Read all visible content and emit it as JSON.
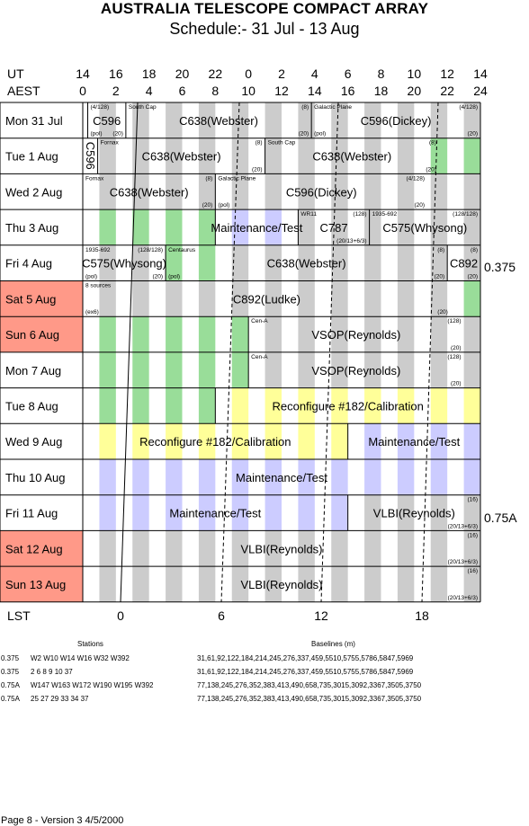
{
  "title": "AUSTRALIA TELESCOPE COMPACT ARRAY",
  "subtitle": "Schedule:- 31 Jul - 13 Aug",
  "axis": {
    "ut_label": "UT",
    "aest_label": "AEST",
    "lst_label": "LST",
    "ut_ticks": [
      "14",
      "16",
      "18",
      "20",
      "22",
      "0",
      "2",
      "4",
      "6",
      "8",
      "10",
      "12",
      "14"
    ],
    "aest_ticks": [
      "0",
      "2",
      "4",
      "6",
      "8",
      "10",
      "12",
      "14",
      "16",
      "18",
      "20",
      "22",
      "24"
    ],
    "lst_ticks": [
      "0",
      "6",
      "12",
      "18"
    ]
  },
  "days": [
    {
      "label": "Mon   31 Jul",
      "weekend": false
    },
    {
      "label": "Tue   1  Aug",
      "weekend": false
    },
    {
      "label": "Wed   2  Aug",
      "weekend": false
    },
    {
      "label": "Thu   3  Aug",
      "weekend": false
    },
    {
      "label": "Fri    4  Aug",
      "weekend": false
    },
    {
      "label": "Sat   5  Aug",
      "weekend": true
    },
    {
      "label": "Sun   6  Aug",
      "weekend": true
    },
    {
      "label": "Mon   7  Aug",
      "weekend": false
    },
    {
      "label": "Tue   8  Aug",
      "weekend": false
    },
    {
      "label": "Wed   9  Aug",
      "weekend": false
    },
    {
      "label": "Thu   10 Aug",
      "weekend": false
    },
    {
      "label": "Fri    11 Aug",
      "weekend": false
    },
    {
      "label": "Sat   12 Aug",
      "weekend": true
    },
    {
      "label": "Sun   13 Aug",
      "weekend": true
    }
  ],
  "configs": [
    {
      "label": "0.375"
    },
    {
      "label": "0.75A"
    }
  ],
  "blocks": [
    {
      "row": 0,
      "start": 0.3,
      "end": 2.6,
      "label": "C596",
      "tl": "(4/128)",
      "bl": "(pol)",
      "br": "(20)"
    },
    {
      "row": 0,
      "start": 2.6,
      "end": 13.8,
      "label": "C638(Webster)",
      "tl": "South Cap",
      "tr": "(8)",
      "br": "(20)"
    },
    {
      "row": 0,
      "start": 13.8,
      "end": 24,
      "label": "C596(Dickey)",
      "tl": "Galactic Plane",
      "tr": "(4/128)",
      "bl": "(pol)",
      "br": "(20)"
    },
    {
      "row": 1,
      "start": 0,
      "end": 0.9,
      "label": "C596",
      "vertical": true
    },
    {
      "row": 1,
      "start": 0.9,
      "end": 11,
      "label": "C638(Webster)",
      "tl": "Fornax",
      "tr": "(8)",
      "br": "(20)"
    },
    {
      "row": 1,
      "start": 11,
      "end": 21.5,
      "label": "C638(Webster)",
      "tl": "South Cap",
      "tr": "(8)",
      "br": "(20)"
    },
    {
      "row": 2,
      "start": 0,
      "end": 8,
      "label": "C638(Webster)",
      "tl": "Fornax",
      "tr": "(8)",
      "br": "(20)"
    },
    {
      "row": 2,
      "start": 8,
      "end": 20.8,
      "label": "C596(Dickey)",
      "tl": "Galactic Plane",
      "tr": "(4/128)",
      "bl": "(pol)",
      "br": "(20)"
    },
    {
      "row": 3,
      "start": 8,
      "end": 13,
      "label": "Maintenance/Test"
    },
    {
      "row": 3,
      "start": 13,
      "end": 17.3,
      "label": "C787",
      "tl": "WR11",
      "tr": "(128)",
      "br": "(20/13+6/3)"
    },
    {
      "row": 3,
      "start": 17.3,
      "end": 24,
      "label": "C575(Whysong)",
      "tl": "1935-692",
      "tr": "(128/128)"
    },
    {
      "row": 4,
      "start": 0,
      "end": 5,
      "label": "C575(Whysong)",
      "tl": "1935-692",
      "tr": "(128/128)",
      "bl": "(pol)",
      "br": "(20)"
    },
    {
      "row": 4,
      "start": 5,
      "end": 22,
      "label": "C638(Webster)",
      "tl": "Centaurus",
      "tr": "(8)",
      "bl": "(pol)",
      "br": "(20)"
    },
    {
      "row": 4,
      "start": 22,
      "end": 24,
      "label": "C892",
      "tr": "(8)",
      "br": "(20)"
    },
    {
      "row": 5,
      "start": 0,
      "end": 22.2,
      "label": "C892(Ludke)",
      "tl": "8 sources",
      "bl": "(ex6)",
      "br": "(20)"
    },
    {
      "row": 6,
      "start": 10,
      "end": 23,
      "label": "VSOP(Reynolds)",
      "tl": "Cen-A",
      "tr": "(128)",
      "br": "(20)"
    },
    {
      "row": 7,
      "start": 10,
      "end": 23,
      "label": "VSOP(Reynolds)",
      "tl": "Cen-A",
      "tr": "(128)",
      "br": "(20)"
    },
    {
      "row": 8,
      "start": 8,
      "end": 24,
      "label": "Reconfigure #182/Calibration"
    },
    {
      "row": 9,
      "start": 0,
      "end": 16,
      "label": "Reconfigure #182/Calibration"
    },
    {
      "row": 9,
      "start": 16,
      "end": 24,
      "label": "Maintenance/Test"
    },
    {
      "row": 10,
      "start": 0,
      "end": 24,
      "label": "Maintenance/Test"
    },
    {
      "row": 11,
      "start": 0,
      "end": 16,
      "label": "Maintenance/Test"
    },
    {
      "row": 11,
      "start": 16,
      "end": 24,
      "label": "VLBI(Reynolds)",
      "tr": "(16)",
      "br": "(20/13+6/3)"
    },
    {
      "row": 12,
      "start": 0,
      "end": 24,
      "label": "VLBI(Reynolds)",
      "tr": "(16)",
      "br": "(20/13+6/3)"
    },
    {
      "row": 13,
      "start": 0,
      "end": 24,
      "label": "VLBI(Reynolds)",
      "tr": "(16)",
      "br": "(20/13+6/3)"
    }
  ],
  "stripe_colors": {
    "gray": "#cccccc",
    "green": "#99dd99",
    "blue": "#ccccff",
    "yellow": "#ffff99",
    "weekend": "#ff9988"
  },
  "stations_header": "Stations",
  "baselines_header": "Baselines (m)",
  "station_rows": [
    {
      "config": "0.375",
      "stations": "W2 W10 W14 W16 W32 W392",
      "baselines": "31,61,92,122,184,214,245,276,337,459,5510,5755,5786,5847,5969"
    },
    {
      "config": "0.375",
      "stations": "2 6 8 9 10 37",
      "baselines": "31,61,92,122,184,214,245,276,337,459,5510,5755,5786,5847,5969"
    },
    {
      "config": "0.75A",
      "stations": "W147 W163 W172 W190 W195 W392",
      "baselines": "77,138,245,276,352,383,413,490,658,735,3015,3092,3367,3505,3750"
    },
    {
      "config": "0.75A",
      "stations": "25 27 29 33 34 37",
      "baselines": "77,138,245,276,352,383,413,490,658,735,3015,3092,3367,3505,3750"
    }
  ],
  "footer": "Page 8 - Version 3  4/5/2000"
}
